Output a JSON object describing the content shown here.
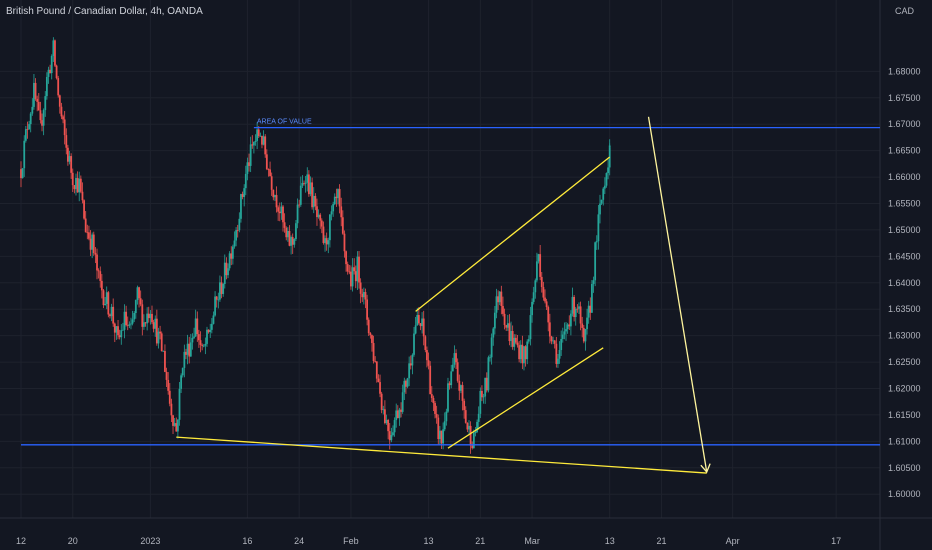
{
  "chart_data": {
    "type": "candlestick",
    "title": "British Pound / Canadian Dollar, 4h, OANDA",
    "currency": "CAD",
    "ylim": [
      1.5955,
      1.6935
    ],
    "y_ticks": [
      "1.68000",
      "1.67500",
      "1.67000",
      "1.66500",
      "1.66000",
      "1.65500",
      "1.65000",
      "1.64500",
      "1.64000",
      "1.63500",
      "1.63000",
      "1.62500",
      "1.62000",
      "1.61500",
      "1.61000",
      "1.60500",
      "1.60000"
    ],
    "x_ticks": [
      "12",
      "20",
      "2023",
      "16",
      "24",
      "Feb",
      "13",
      "21",
      "Mar",
      "13",
      "21",
      "Apr",
      "17"
    ],
    "x_domain": [
      "Dec 12",
      "Apr 21"
    ],
    "x_tick_dates": [
      "Dec 12",
      "Dec 20",
      "Jan 1",
      "Jan 16",
      "Jan 24",
      "Feb 1",
      "Feb 13",
      "Feb 21",
      "Mar 1",
      "Mar 13",
      "Mar 21",
      "Apr 1",
      "Apr 17"
    ],
    "colors": {
      "up": "#26a69a",
      "down": "#ef5350",
      "trendline": "#ffeb3b",
      "level": "#2962ff",
      "arrow": "#fff59d",
      "background": "#131722"
    },
    "path": [
      [
        "Dec 12",
        1.6615
      ],
      [
        "Dec 13",
        1.67
      ],
      [
        "Dec 14",
        1.676
      ],
      [
        "Dec 15",
        1.669
      ],
      [
        "Dec 16",
        1.6785
      ],
      [
        "Dec 17",
        1.684
      ],
      [
        "Dec 18",
        1.673
      ],
      [
        "Dec 19",
        1.6655
      ],
      [
        "Dec 20",
        1.66
      ],
      [
        "Dec 21",
        1.6585
      ],
      [
        "Dec 22",
        1.6505
      ],
      [
        "Dec 23",
        1.6475
      ],
      [
        "Dec 24",
        1.6405
      ],
      [
        "Dec 25",
        1.637
      ],
      [
        "Dec 26",
        1.6345
      ],
      [
        "Dec 27",
        1.6285
      ],
      [
        "Dec 28",
        1.633
      ],
      [
        "Dec 29",
        1.6305
      ],
      [
        "Dec 30",
        1.6375
      ],
      [
        "Dec 31",
        1.6325
      ],
      [
        "Jan 1",
        1.6355
      ],
      [
        "Jan 2",
        1.6305
      ],
      [
        "Jan 3",
        1.6265
      ],
      [
        "Jan 4",
        1.6175
      ],
      [
        "Jan 5",
        1.612
      ],
      [
        "Jan 6",
        1.6255
      ],
      [
        "Jan 7",
        1.628
      ],
      [
        "Jan 8",
        1.6325
      ],
      [
        "Jan 9",
        1.6265
      ],
      [
        "Jan 10",
        1.63
      ],
      [
        "Jan 11",
        1.6355
      ],
      [
        "Jan 12",
        1.6395
      ],
      [
        "Jan 13",
        1.644
      ],
      [
        "Jan 14",
        1.649
      ],
      [
        "Jan 15",
        1.655
      ],
      [
        "Jan 16",
        1.662
      ],
      [
        "Jan 17",
        1.6665
      ],
      [
        "Jan 18",
        1.6685
      ],
      [
        "Jan 19",
        1.663
      ],
      [
        "Jan 20",
        1.658
      ],
      [
        "Jan 21",
        1.654
      ],
      [
        "Jan 22",
        1.648
      ],
      [
        "Jan 23",
        1.6475
      ],
      [
        "Jan 24",
        1.6555
      ],
      [
        "Jan 25",
        1.661
      ],
      [
        "Jan 26",
        1.656
      ],
      [
        "Jan 27",
        1.651
      ],
      [
        "Jan 28",
        1.647
      ],
      [
        "Jan 29",
        1.6525
      ],
      [
        "Jan 30",
        1.656
      ],
      [
        "Jan 31",
        1.645
      ],
      [
        "Feb 1",
        1.6405
      ],
      [
        "Feb 2",
        1.643
      ],
      [
        "Feb 3",
        1.637
      ],
      [
        "Feb 4",
        1.63
      ],
      [
        "Feb 5",
        1.623
      ],
      [
        "Feb 6",
        1.616
      ],
      [
        "Feb 7",
        1.6115
      ],
      [
        "Feb 8",
        1.615
      ],
      [
        "Feb 9",
        1.6185
      ],
      [
        "Feb 10",
        1.624
      ],
      [
        "Feb 11",
        1.6325
      ],
      [
        "Feb 12",
        1.6315
      ],
      [
        "Feb 13",
        1.6235
      ],
      [
        "Feb 14",
        1.6135
      ],
      [
        "Feb 15",
        1.61
      ],
      [
        "Feb 16",
        1.619
      ],
      [
        "Feb 17",
        1.625
      ],
      [
        "Feb 18",
        1.619
      ],
      [
        "Feb 19",
        1.6125
      ],
      [
        "Feb 20",
        1.61
      ],
      [
        "Feb 21",
        1.6175
      ],
      [
        "Feb 22",
        1.621
      ],
      [
        "Feb 23",
        1.633
      ],
      [
        "Feb 24",
        1.639
      ],
      [
        "Feb 25",
        1.632
      ],
      [
        "Feb 26",
        1.629
      ],
      [
        "Feb 27",
        1.6275
      ],
      [
        "Feb 28",
        1.6255
      ],
      [
        "Mar 1",
        1.636
      ],
      [
        "Mar 2",
        1.6455
      ],
      [
        "Mar 3",
        1.6355
      ],
      [
        "Mar 4",
        1.6305
      ],
      [
        "Mar 5",
        1.6255
      ],
      [
        "Mar 6",
        1.63
      ],
      [
        "Mar 7",
        1.635
      ],
      [
        "Mar 8",
        1.636
      ],
      [
        "Mar 9",
        1.6275
      ],
      [
        "Mar 10",
        1.636
      ],
      [
        "Mar 11",
        1.649
      ],
      [
        "Mar 12",
        1.658
      ],
      [
        "Mar 13",
        1.6655
      ],
      [
        "Mar 13",
        1.664
      ]
    ],
    "levels": [
      {
        "price": 1.66935,
        "from": "Jan 17",
        "label": "AREA OF VALUE"
      },
      {
        "price": 1.60935,
        "from": "Dec 12",
        "label": ""
      }
    ],
    "trendlines": [
      {
        "from": [
          "Jan 5",
          1.6108
        ],
        "to": [
          "Mar 28",
          1.604
        ]
      },
      {
        "from": [
          "Feb 11",
          1.6346
        ],
        "to": [
          "Mar 13",
          1.6638
        ]
      },
      {
        "from": [
          "Feb 16",
          1.6087
        ],
        "to": [
          "Mar 12",
          1.6277
        ]
      }
    ],
    "arrow": {
      "from": [
        "Mar 19",
        1.6714
      ],
      "to": [
        "Mar 28",
        1.6042
      ]
    }
  }
}
